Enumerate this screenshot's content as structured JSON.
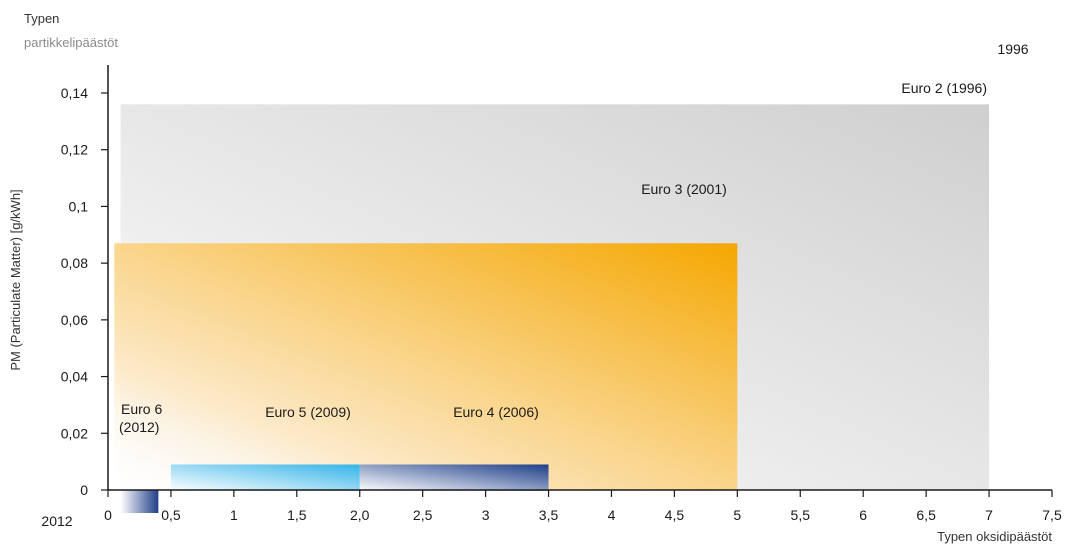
{
  "chart_data": {
    "type": "area",
    "title": "",
    "xlabel": "Typen oksidipäästöt",
    "ylabel": "PM (Particulate Matter) [g/kWh]",
    "ylabel_top": [
      "Typen",
      "partikkelipäästöt"
    ],
    "xlim": [
      0,
      7.5
    ],
    "ylim": [
      0,
      0.14
    ],
    "x_ticks": [
      0,
      0.5,
      1,
      1.5,
      2,
      2.5,
      3,
      3.5,
      4,
      4.5,
      5,
      5.5,
      6,
      6.5,
      7,
      7.5
    ],
    "x_tick_labels": [
      "0",
      "0,5",
      "1",
      "1,5",
      "2,0",
      "2,5",
      "3",
      "3,5",
      "4",
      "4,5",
      "5",
      "5,5",
      "6",
      "6,5",
      "7",
      "7,5"
    ],
    "y_ticks": [
      0,
      0.02,
      0.04,
      0.06,
      0.08,
      0.1,
      0.12,
      0.14
    ],
    "y_tick_labels": [
      "0",
      "0,02",
      "0,04",
      "0,06",
      "0,08",
      "0,1",
      "0,12",
      "0,14"
    ],
    "grid": false,
    "legend": "none",
    "series": [
      {
        "name": "Euro 2 (1996)",
        "nox": 7.0,
        "pm": 0.136,
        "color": "#cfcfcf"
      },
      {
        "name": "Euro 3 (2001)",
        "nox": 5.0,
        "pm": 0.087,
        "color": "#f5a700"
      },
      {
        "name": "Euro 4 (2006)",
        "nox": 3.5,
        "pm": 0.009,
        "color": "#1f3f8a"
      },
      {
        "name": "Euro 5 (2009)",
        "nox": 2.0,
        "pm": 0.009,
        "color": "#35b4e8"
      },
      {
        "name": "Euro 6 (2012)",
        "nox": 0.4,
        "pm": 0.0,
        "color": "#1f3f8a"
      }
    ],
    "euro6_label": [
      "Euro 6",
      "(2012)"
    ],
    "annotations": {
      "year_top": "1996",
      "year_bottom": "2012"
    }
  }
}
